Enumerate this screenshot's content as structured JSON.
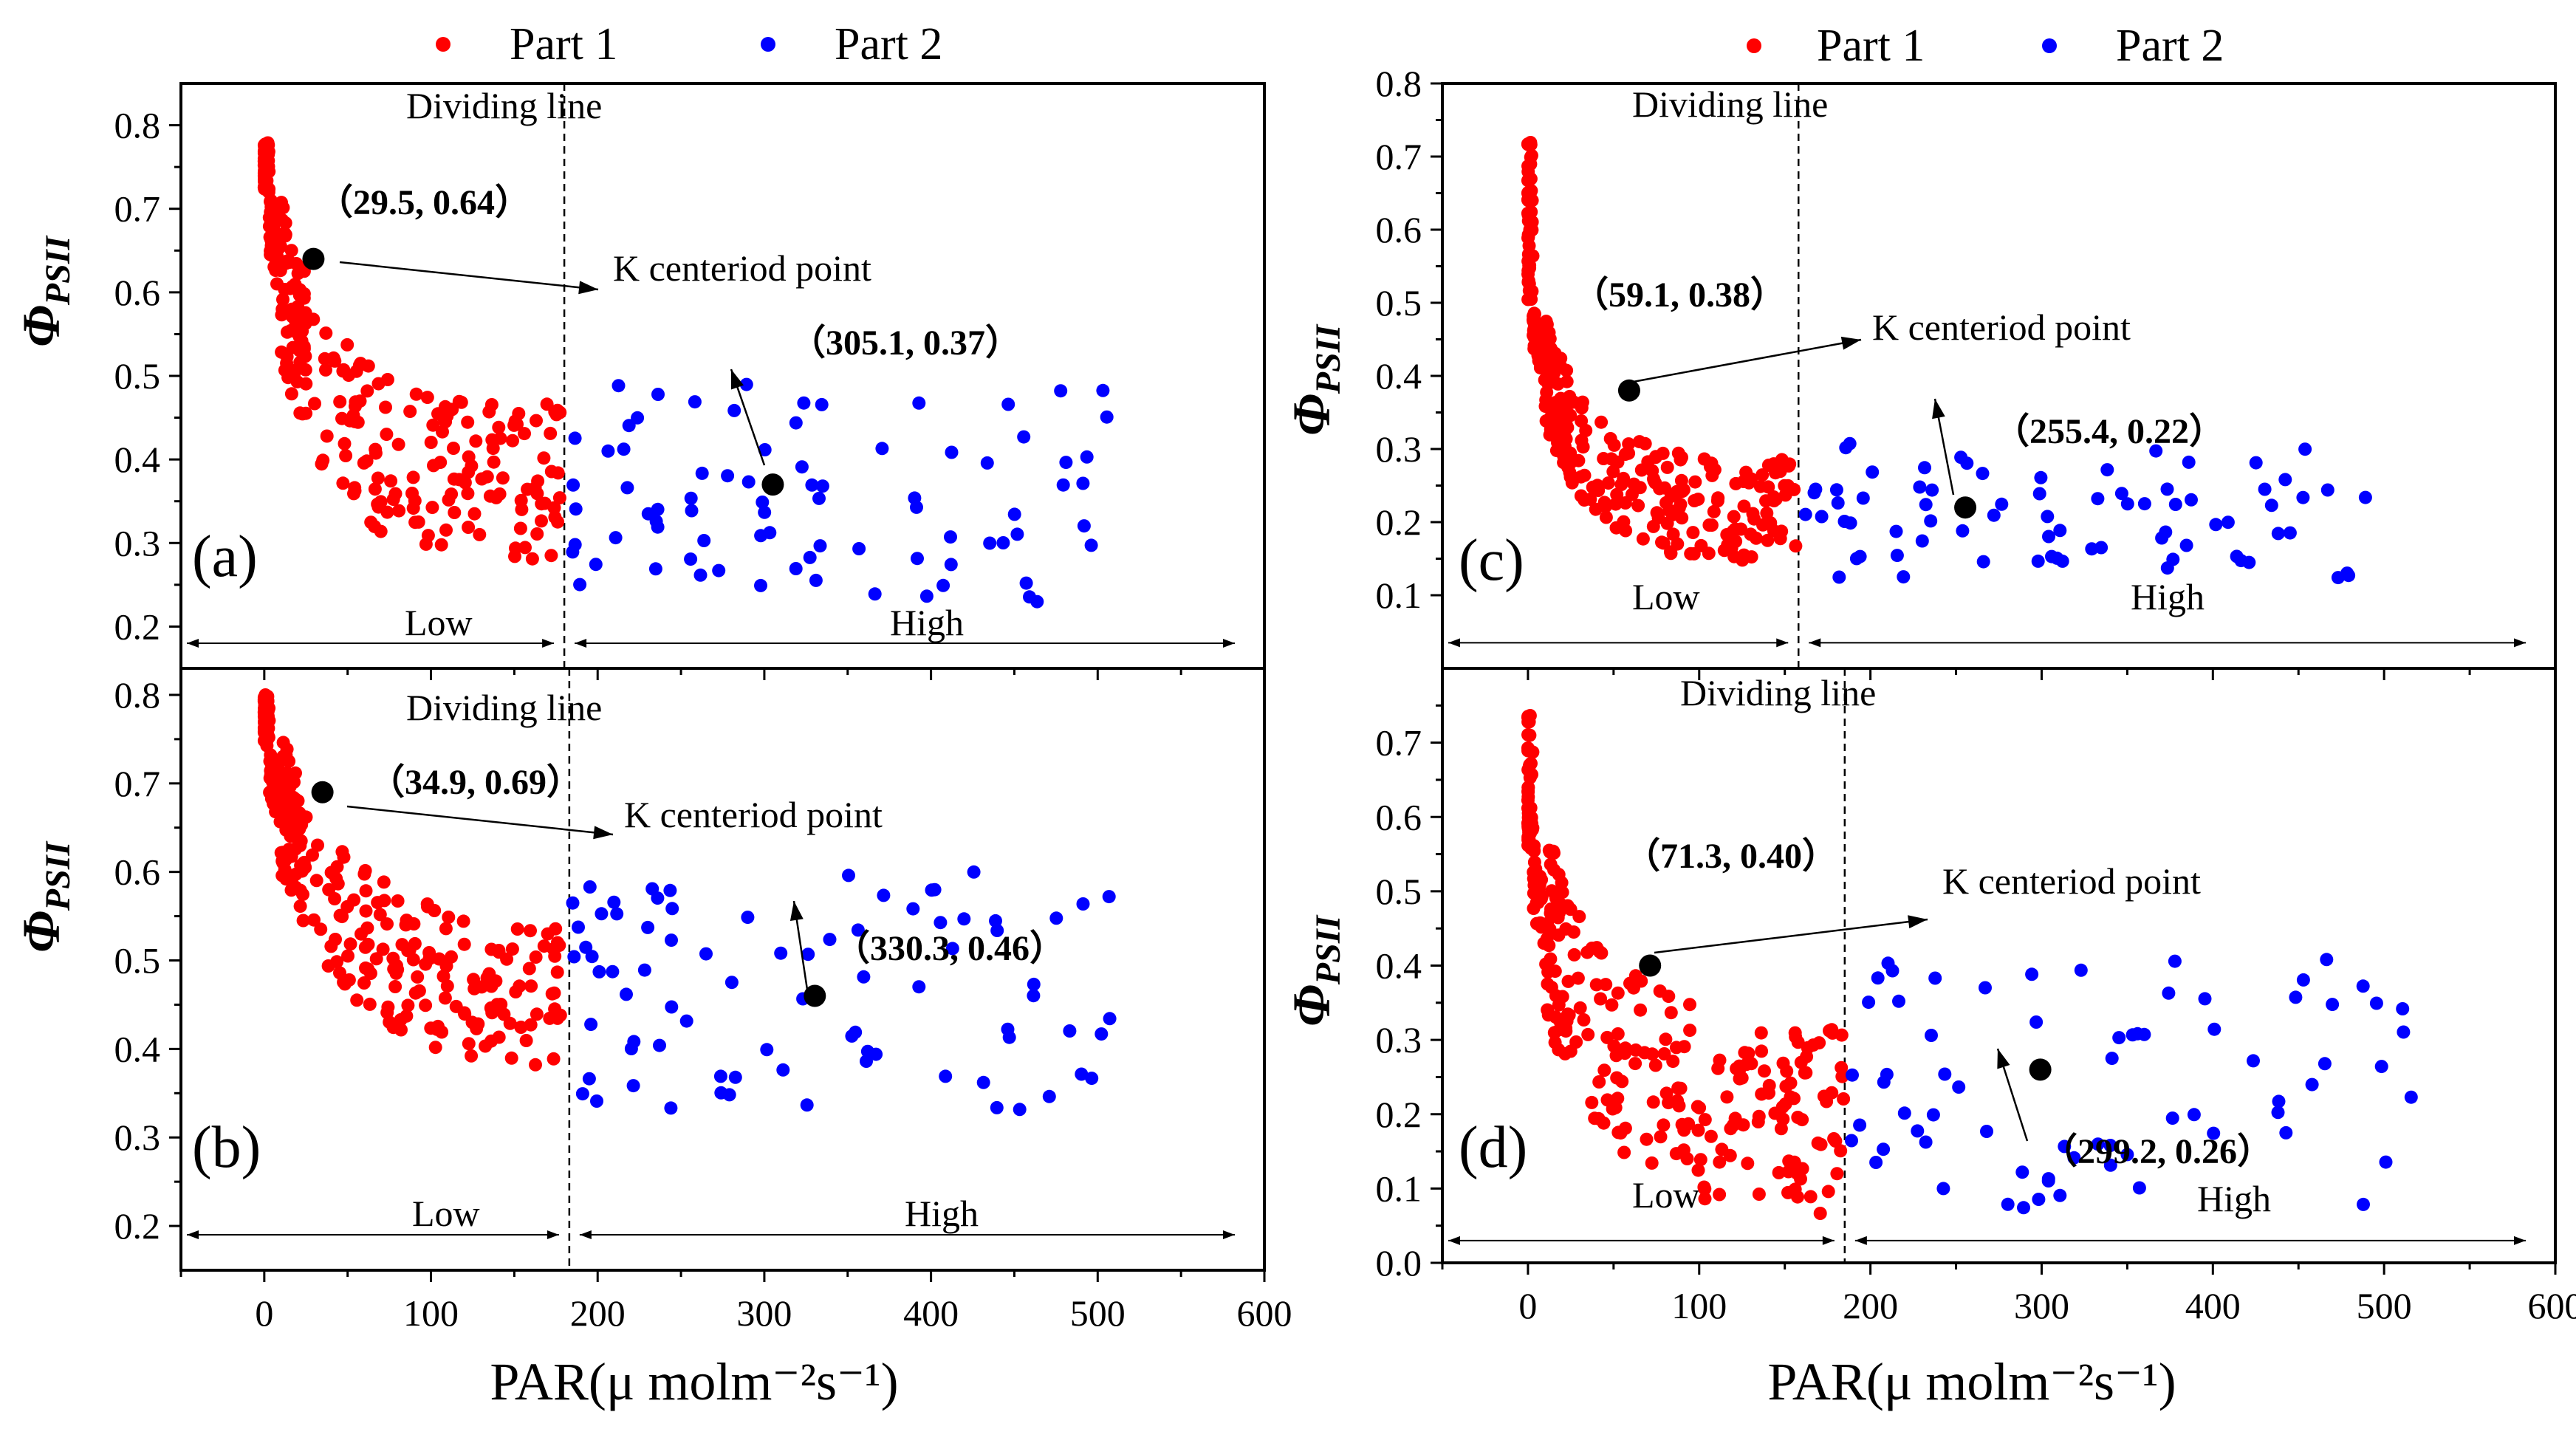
{
  "legend": [
    {
      "label": "Part 1",
      "color": "#ff0000"
    },
    {
      "label": "Part 2",
      "color": "#0000ff"
    }
  ],
  "x_axis_title": "PAR(μ molm⁻²s⁻¹)",
  "y_axis_title": "Φ",
  "y_axis_subscript": "PSII",
  "chart_data": [
    {
      "type": "scatter",
      "panel": "(a)",
      "xlim": [
        -50,
        600
      ],
      "ylim": [
        0.15,
        0.85
      ],
      "xticks": [
        0,
        100,
        200,
        300,
        400,
        500,
        600
      ],
      "yticks": [
        0.2,
        0.3,
        0.4,
        0.5,
        0.6,
        0.7,
        0.8
      ],
      "dividing_x": 180,
      "dividing_label": "Dividing line",
      "region_y": 0.18,
      "low_label": "Low",
      "high_label": "High",
      "centroid_label": "K centeriod point",
      "centroids": [
        {
          "x": 29.5,
          "y": 0.64,
          "text": "（29.5, 0.64）"
        },
        {
          "x": 305.1,
          "y": 0.37,
          "text": "（305.1, 0.37）"
        }
      ],
      "series": [
        {
          "name": "Part 1",
          "params": {
            "xmin": 0,
            "xmax": 178,
            "yA": 0.78,
            "yB": 0.72,
            "k": 32,
            "floor": 0.38,
            "spread": 0.12,
            "n": 330,
            "dense": 0.45,
            "seed": 11
          }
        },
        {
          "name": "Part 2",
          "params": {
            "xmin": 185,
            "xmax": 510,
            "ymin": 0.22,
            "ymax": 0.49,
            "n": 80,
            "seed": 12
          }
        }
      ]
    },
    {
      "type": "scatter",
      "panel": "(b)",
      "xlim": [
        -50,
        600
      ],
      "ylim": [
        0.15,
        0.83
      ],
      "xticks": [
        0,
        100,
        200,
        300,
        400,
        500,
        600
      ],
      "yticks": [
        0.2,
        0.3,
        0.4,
        0.5,
        0.6,
        0.7,
        0.8
      ],
      "dividing_x": 183,
      "dividing_label": "Dividing line",
      "region_y": 0.19,
      "low_label": "Low",
      "high_label": "High",
      "centroid_label": "K centeriod point",
      "centroids": [
        {
          "x": 34.9,
          "y": 0.69,
          "text": "（34.9, 0.69）"
        },
        {
          "x": 330.3,
          "y": 0.46,
          "text": "（330.3, 0.46）"
        }
      ],
      "series": [
        {
          "name": "Part 1",
          "params": {
            "xmin": 0,
            "xmax": 178,
            "yA": 0.8,
            "yB": 0.74,
            "k": 45,
            "floor": 0.46,
            "spread": 0.1,
            "n": 330,
            "dense": 0.45,
            "seed": 21
          }
        },
        {
          "name": "Part 2",
          "params": {
            "xmin": 185,
            "xmax": 510,
            "ymin": 0.33,
            "ymax": 0.6,
            "n": 80,
            "seed": 22
          }
        }
      ]
    },
    {
      "type": "scatter",
      "panel": "(c)",
      "xlim": [
        -50,
        600
      ],
      "ylim": [
        0.0,
        0.8
      ],
      "xticks": [
        0,
        100,
        200,
        300,
        400,
        500,
        600
      ],
      "yticks": [
        0.1,
        0.2,
        0.3,
        0.4,
        0.5,
        0.6,
        0.7,
        0.8
      ],
      "dividing_x": 158,
      "dividing_label": "Dividing line",
      "region_y": 0.035,
      "low_label": "Low",
      "high_label": "High",
      "centroid_label": "K centeriod point",
      "centroids": [
        {
          "x": 59.1,
          "y": 0.38,
          "text": "（59.1, 0.38）"
        },
        {
          "x": 255.4,
          "y": 0.22,
          "text": "（255.4, 0.22）"
        }
      ],
      "series": [
        {
          "name": "Part 1",
          "params": {
            "xmin": 0,
            "xmax": 158,
            "yA": 0.72,
            "yB": 0.5,
            "k": 28,
            "floor": 0.22,
            "spread": 0.09,
            "n": 320,
            "dense": 0.4,
            "seed": 31
          }
        },
        {
          "name": "Part 2",
          "params": {
            "xmin": 160,
            "xmax": 500,
            "ymin": 0.12,
            "ymax": 0.31,
            "n": 75,
            "seed": 32
          }
        }
      ]
    },
    {
      "type": "scatter",
      "panel": "(d)",
      "xlim": [
        -50,
        600
      ],
      "ylim": [
        0.0,
        0.8
      ],
      "xticks": [
        0,
        100,
        200,
        300,
        400,
        500,
        600
      ],
      "yticks": [
        0.0,
        0.1,
        0.2,
        0.3,
        0.4,
        0.5,
        0.6,
        0.7
      ],
      "dividing_x": 185,
      "dividing_label": "Dividing line",
      "region_y": 0.03,
      "low_label": "Low",
      "high_label": "High",
      "centroid_label": "K centeriod point",
      "centroids": [
        {
          "x": 71.3,
          "y": 0.4,
          "text": "（71.3, 0.40）"
        },
        {
          "x": 299.2,
          "y": 0.26,
          "text": "（299.2, 0.26）"
        }
      ],
      "series": [
        {
          "name": "Part 1",
          "params": {
            "xmin": 0,
            "xmax": 185,
            "yA": 0.74,
            "yB": 0.55,
            "k": 40,
            "floor": 0.2,
            "spread": 0.16,
            "n": 300,
            "dense": 0.35,
            "seed": 41
          }
        },
        {
          "name": "Part 2",
          "params": {
            "xmin": 187,
            "xmax": 520,
            "ymin": 0.07,
            "ymax": 0.41,
            "n": 70,
            "seed": 42
          }
        }
      ]
    }
  ]
}
